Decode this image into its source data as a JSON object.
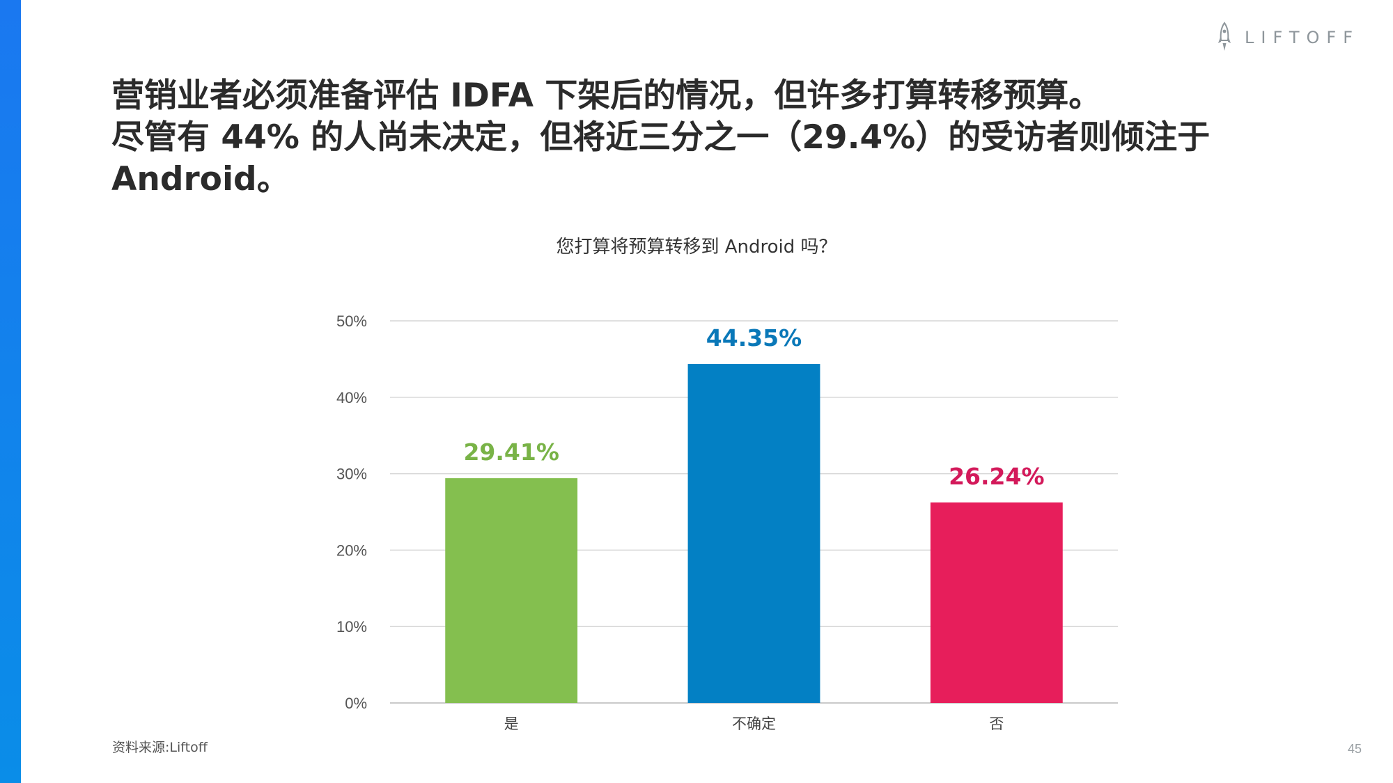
{
  "brand": {
    "name": "LIFTOFF",
    "accent": "#1a78f0"
  },
  "headline": {
    "line1": "营销业者必须准备评估 IDFA 下架后的情况，但许多打算转移预算。",
    "line2": "尽管有 44% 的人尚未决定，但将近三分之一（29.4%）的受访者则倾注于",
    "line3": "Android。"
  },
  "footer": {
    "source": "资料来源:Liftoff",
    "page_number": "45"
  },
  "chart_data": {
    "type": "bar",
    "title": "您打算将预算转移到 Android 吗？",
    "categories": [
      "是",
      "不确定",
      "否"
    ],
    "values": [
      29.41,
      44.35,
      26.24
    ],
    "value_labels": [
      "29.41%",
      "44.35%",
      "26.24%"
    ],
    "bar_colors": [
      "#84bf4f",
      "#0380c4",
      "#e71e5b"
    ],
    "label_colors": [
      "#79b347",
      "#0a78b8",
      "#d3195a"
    ],
    "ylim": [
      0,
      50
    ],
    "yticks": [
      0,
      10,
      20,
      30,
      40,
      50
    ],
    "ytick_labels": [
      "0%",
      "10%",
      "20%",
      "30%",
      "40%",
      "50%"
    ],
    "grid": true,
    "xlabel": "",
    "ylabel": ""
  }
}
